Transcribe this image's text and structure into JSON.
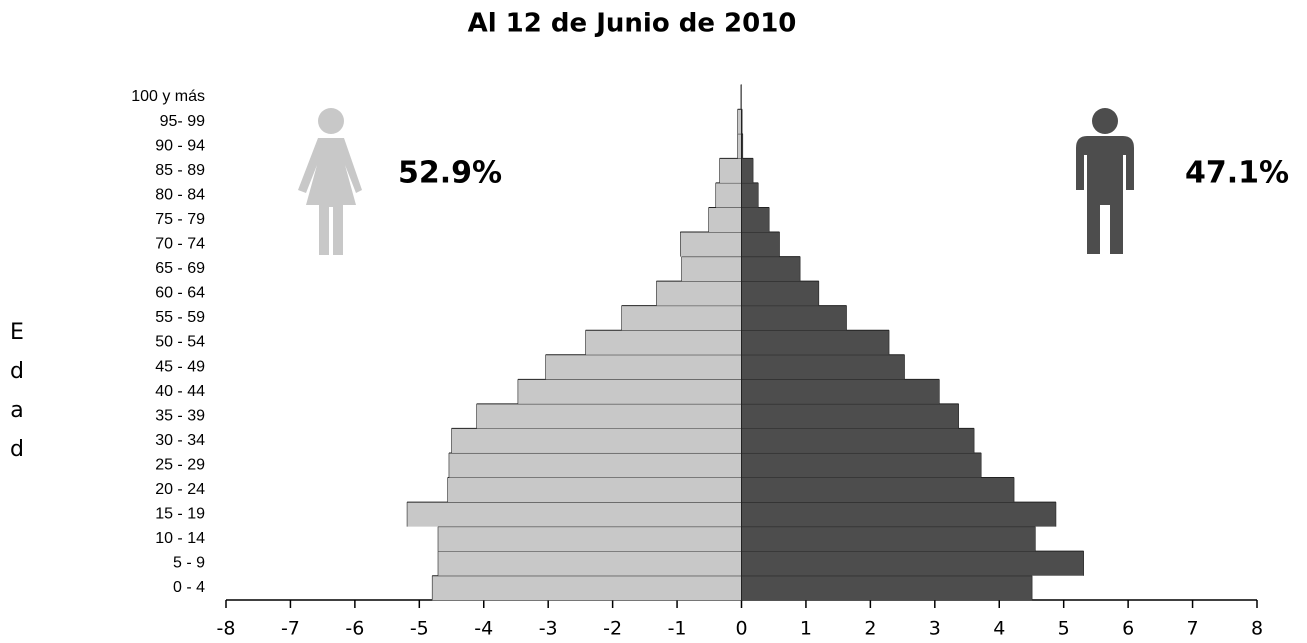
{
  "chart_data": {
    "type": "pyramid",
    "title": "Al 12 de Junio de 2010",
    "y_label": "Edad",
    "annotations": [
      "52.9%",
      "47.1%"
    ],
    "categories": [
      "0 - 4",
      "5 - 9",
      "10 - 14",
      "15 - 19",
      "20 - 24",
      "25 - 29",
      "30 - 34",
      "35 - 39",
      "40 - 44",
      "45 - 49",
      "50 - 54",
      "55 - 59",
      "60 - 64",
      "65 - 69",
      "70 - 74",
      "75 - 79",
      "80 - 84",
      "85 - 89",
      "90 - 94",
      "95- 99",
      "100 y más"
    ],
    "series": [
      {
        "color": "#c8c8c8",
        "values": [
          -4.8,
          -4.71,
          -4.71,
          -5.19,
          -4.56,
          -4.54,
          -4.5,
          -4.11,
          -3.47,
          -3.04,
          -2.42,
          -1.86,
          -1.32,
          -0.93,
          -0.95,
          -0.51,
          -0.4,
          -0.34,
          -0.06,
          -0.06,
          -0.01
        ]
      },
      {
        "color": "#4d4d4d",
        "values": [
          4.51,
          5.31,
          4.56,
          4.88,
          4.23,
          3.72,
          3.61,
          3.37,
          3.07,
          2.53,
          2.29,
          1.63,
          1.2,
          0.91,
          0.59,
          0.43,
          0.26,
          0.18,
          0.02,
          0.01,
          0
        ]
      }
    ],
    "xlim": [
      -8,
      8
    ],
    "xticks": [
      -8,
      -7,
      -6,
      -5,
      -4,
      -3,
      -2,
      -1,
      0,
      1,
      2,
      3,
      4,
      5,
      6,
      7,
      8
    ]
  }
}
